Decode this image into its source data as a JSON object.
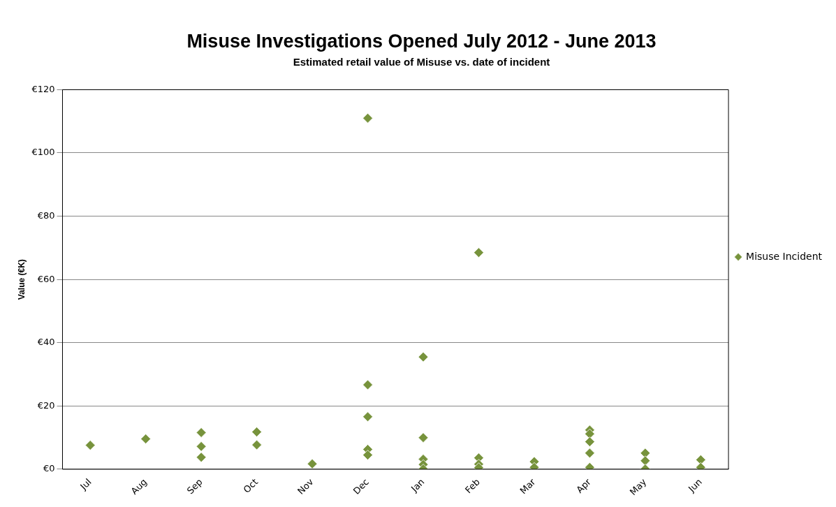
{
  "chart_data": {
    "type": "scatter",
    "title": "Misuse Investigations Opened July 2012 - June 2013",
    "subtitle": "Estimated retail value of Misuse vs. date of incident",
    "ylabel": "Value (€K)",
    "categories": [
      "Jul",
      "Aug",
      "Sep",
      "Oct",
      "Nov",
      "Dec",
      "Jan",
      "Feb",
      "Mar",
      "Apr",
      "May",
      "Jun"
    ],
    "series": [
      {
        "name": "Misuse Incident",
        "color": "#77933c",
        "x": [
          "Jul",
          "Aug",
          "Sep",
          "Sep",
          "Sep",
          "Oct",
          "Oct",
          "Nov",
          "Dec",
          "Dec",
          "Dec",
          "Dec",
          "Dec",
          "Jan",
          "Jan",
          "Jan",
          "Jan",
          "Jan",
          "Feb",
          "Feb",
          "Feb",
          "Feb",
          "Mar",
          "Mar",
          "Apr",
          "Apr",
          "Apr",
          "Apr",
          "Apr",
          "May",
          "May",
          "May",
          "Jun",
          "Jun"
        ],
        "values": [
          7.6,
          9.6,
          11.6,
          7.2,
          3.8,
          11.8,
          7.7,
          1.7,
          111,
          26.7,
          16.6,
          6.3,
          4.5,
          35.5,
          10,
          3.2,
          1.5,
          0.1,
          68.5,
          3.6,
          1.6,
          0.5,
          2.4,
          0.6,
          12.4,
          11.2,
          8.7,
          5.1,
          0.6,
          5.1,
          2.7,
          0.1,
          3,
          0.6
        ]
      }
    ],
    "ylim": [
      0,
      120
    ],
    "yticks": [
      {
        "value": 0,
        "label": "€0"
      },
      {
        "value": 20,
        "label": "€20"
      },
      {
        "value": 40,
        "label": "€40"
      },
      {
        "value": 60,
        "label": "€60"
      },
      {
        "value": 80,
        "label": "€80"
      },
      {
        "value": 100,
        "label": "€100"
      },
      {
        "value": 120,
        "label": "€120"
      }
    ],
    "grid": "y",
    "legend": "right",
    "marker": "diamond"
  }
}
